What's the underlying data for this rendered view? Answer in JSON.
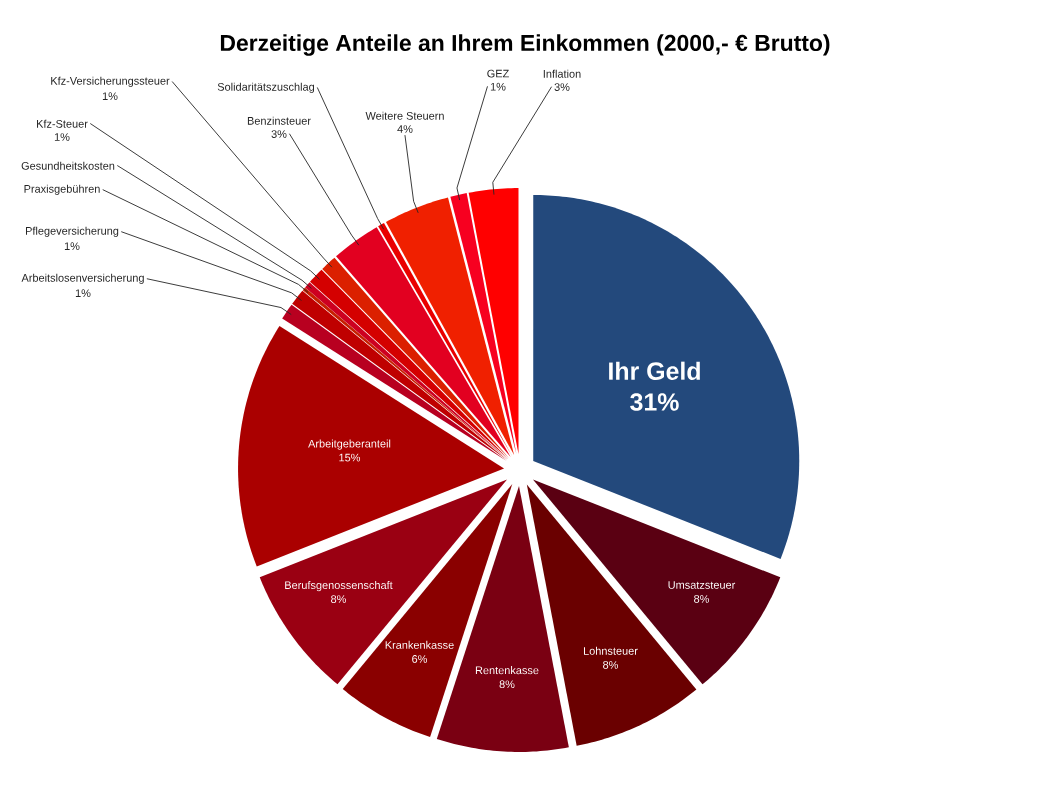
{
  "chart_data": {
    "type": "pie",
    "title": "Derzeitige Anteile an Ihrem Einkommen (2000,- € Brutto)",
    "categories": [
      "Ihr Geld",
      "Umsatzsteuer",
      "Lohnsteuer",
      "Rentenkasse",
      "Krankenkasse",
      "Berufsgenossenschaft",
      "Arbeitgeberanteil",
      "Arbeitslosenversicherung",
      "Pflegeversicherung",
      "Praxisgebühren",
      "Gesundheitskosten",
      "Kfz-Steuer",
      "Kfz-Versicherungssteuer",
      "Benzinsteuer",
      "Solidaritätszuschlag",
      "Weitere Steuern",
      "GEZ",
      "Inflation"
    ],
    "values": [
      31,
      8,
      8,
      8,
      6,
      8,
      15,
      1,
      1,
      0.2,
      0.4,
      1,
      1,
      3,
      0.4,
      4,
      1,
      3
    ],
    "value_labels": [
      "31%",
      "8%",
      "8%",
      "8%",
      "6%",
      "8%",
      "15%",
      "1%",
      "1%",
      null,
      null,
      "1%",
      "1%",
      "3%",
      null,
      "4%",
      "1%",
      "3%"
    ],
    "colors": [
      "#23497c",
      "#5a0012",
      "#6a0000",
      "#7a0012",
      "#8a0000",
      "#9a0012",
      "#aa0000",
      "#b80020",
      "#bf0000",
      "#c62000",
      "#cd0020",
      "#d40000",
      "#db2000",
      "#e20020",
      "#e90000",
      "#f02000",
      "#f70020",
      "#ff0000"
    ]
  }
}
